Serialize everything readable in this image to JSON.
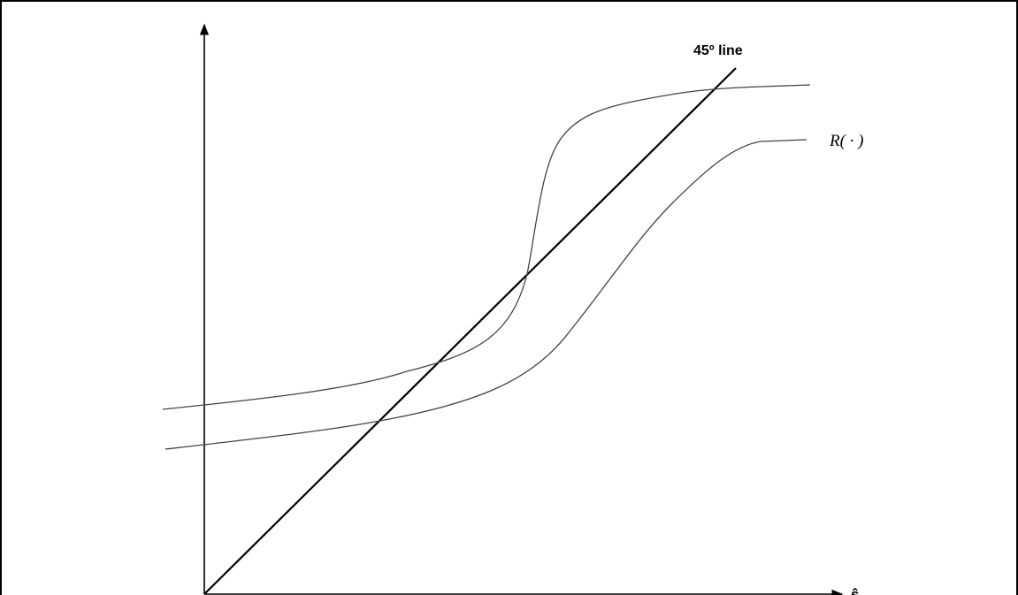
{
  "labels": {
    "line45": "45º line",
    "curve": "R( · )",
    "xaxis": "ŝ"
  },
  "colors": {
    "ink": "#000000",
    "curve": "#444444"
  }
}
